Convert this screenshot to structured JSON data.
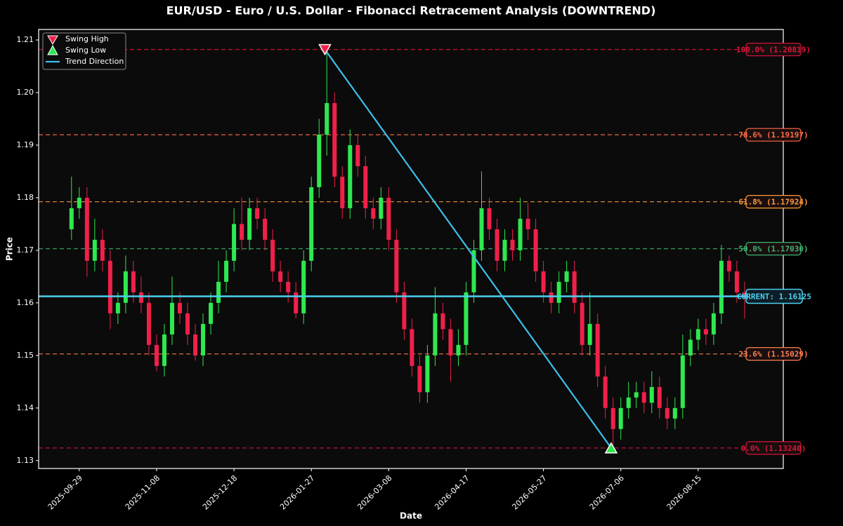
{
  "chart_data": {
    "type": "candlestick",
    "title": "EUR/USD - Euro / U.S. Dollar - Fibonacci Retracement Analysis (DOWNTREND)",
    "x_label": "Date",
    "y_label": "Price",
    "x": [
      "2025-09-25",
      "2025-09-29",
      "2025-10-03",
      "2025-10-07",
      "2025-10-11",
      "2025-10-15",
      "2025-10-19",
      "2025-10-23",
      "2025-10-27",
      "2025-10-31",
      "2025-11-04",
      "2025-11-08",
      "2025-11-12",
      "2025-11-16",
      "2025-11-20",
      "2025-11-24",
      "2025-11-28",
      "2025-12-02",
      "2025-12-06",
      "2025-12-10",
      "2025-12-14",
      "2025-12-18",
      "2025-12-22",
      "2025-12-26",
      "2025-12-30",
      "2026-01-03",
      "2026-01-07",
      "2026-01-11",
      "2026-01-15",
      "2026-01-19",
      "2026-01-23",
      "2026-01-27",
      "2026-01-31",
      "2026-02-04",
      "2026-02-08",
      "2026-02-12",
      "2026-02-16",
      "2026-02-20",
      "2026-02-24",
      "2026-02-28",
      "2026-03-04",
      "2026-03-08",
      "2026-03-12",
      "2026-03-16",
      "2026-03-20",
      "2026-03-24",
      "2026-03-28",
      "2026-04-01",
      "2026-04-05",
      "2026-04-09",
      "2026-04-13",
      "2026-04-17",
      "2026-04-21",
      "2026-04-25",
      "2026-04-29",
      "2026-05-03",
      "2026-05-07",
      "2026-05-11",
      "2026-05-15",
      "2026-05-19",
      "2026-05-23",
      "2026-05-27",
      "2026-05-31",
      "2026-06-04",
      "2026-06-08",
      "2026-06-12",
      "2026-06-16",
      "2026-06-20",
      "2026-06-24",
      "2026-06-28",
      "2026-07-02",
      "2026-07-06",
      "2026-07-10",
      "2026-07-14",
      "2026-07-18",
      "2026-07-22",
      "2026-07-26",
      "2026-07-30",
      "2026-08-03",
      "2026-08-07",
      "2026-08-11",
      "2026-08-15",
      "2026-08-19",
      "2026-08-23",
      "2026-08-27",
      "2026-08-31",
      "2026-09-04",
      "2026-09-08"
    ],
    "open": [
      1.174,
      1.178,
      1.18,
      1.168,
      1.172,
      1.168,
      1.158,
      1.16,
      1.166,
      1.162,
      1.16,
      1.152,
      1.148,
      1.154,
      1.16,
      1.158,
      1.154,
      1.15,
      1.156,
      1.16,
      1.164,
      1.168,
      1.175,
      1.172,
      1.178,
      1.176,
      1.172,
      1.166,
      1.164,
      1.162,
      1.158,
      1.168,
      1.182,
      1.192,
      1.198,
      1.184,
      1.178,
      1.19,
      1.186,
      1.178,
      1.176,
      1.18,
      1.172,
      1.162,
      1.155,
      1.148,
      1.143,
      1.15,
      1.158,
      1.155,
      1.15,
      1.152,
      1.162,
      1.17,
      1.178,
      1.174,
      1.168,
      1.172,
      1.17,
      1.176,
      1.174,
      1.166,
      1.162,
      1.16,
      1.164,
      1.166,
      1.16,
      1.152,
      1.156,
      1.146,
      1.14,
      1.136,
      1.14,
      1.142,
      1.143,
      1.141,
      1.144,
      1.14,
      1.138,
      1.14,
      1.15,
      1.153,
      1.155,
      1.154,
      1.158,
      1.168,
      1.166,
      1.162
    ],
    "high": [
      1.184,
      1.182,
      1.182,
      1.176,
      1.174,
      1.17,
      1.162,
      1.169,
      1.168,
      1.165,
      1.162,
      1.154,
      1.156,
      1.165,
      1.162,
      1.16,
      1.156,
      1.158,
      1.162,
      1.168,
      1.17,
      1.178,
      1.18,
      1.18,
      1.18,
      1.178,
      1.174,
      1.168,
      1.166,
      1.164,
      1.17,
      1.184,
      1.195,
      1.2082,
      1.2,
      1.186,
      1.193,
      1.192,
      1.188,
      1.18,
      1.182,
      1.182,
      1.174,
      1.164,
      1.157,
      1.15,
      1.152,
      1.163,
      1.16,
      1.157,
      1.155,
      1.164,
      1.172,
      1.185,
      1.18,
      1.176,
      1.174,
      1.174,
      1.18,
      1.179,
      1.176,
      1.168,
      1.164,
      1.166,
      1.168,
      1.168,
      1.162,
      1.162,
      1.158,
      1.148,
      1.142,
      1.142,
      1.145,
      1.145,
      1.145,
      1.147,
      1.146,
      1.142,
      1.142,
      1.154,
      1.155,
      1.157,
      1.157,
      1.16,
      1.171,
      1.169,
      1.168,
      1.164
    ],
    "low": [
      1.172,
      1.176,
      1.165,
      1.166,
      1.166,
      1.155,
      1.156,
      1.158,
      1.16,
      1.158,
      1.15,
      1.147,
      1.146,
      1.152,
      1.156,
      1.152,
      1.149,
      1.148,
      1.154,
      1.158,
      1.162,
      1.166,
      1.17,
      1.17,
      1.174,
      1.17,
      1.164,
      1.162,
      1.16,
      1.157,
      1.156,
      1.166,
      1.18,
      1.188,
      1.182,
      1.176,
      1.176,
      1.184,
      1.176,
      1.174,
      1.174,
      1.17,
      1.16,
      1.153,
      1.146,
      1.141,
      1.141,
      1.148,
      1.153,
      1.145,
      1.148,
      1.15,
      1.16,
      1.168,
      1.172,
      1.166,
      1.166,
      1.168,
      1.168,
      1.172,
      1.164,
      1.16,
      1.158,
      1.158,
      1.162,
      1.158,
      1.15,
      1.15,
      1.144,
      1.138,
      1.1324,
      1.134,
      1.138,
      1.14,
      1.139,
      1.139,
      1.138,
      1.136,
      1.136,
      1.138,
      1.148,
      1.151,
      1.152,
      1.152,
      1.156,
      1.164,
      1.16,
      1.157
    ],
    "close": [
      1.178,
      1.18,
      1.168,
      1.172,
      1.168,
      1.158,
      1.16,
      1.166,
      1.162,
      1.16,
      1.152,
      1.148,
      1.154,
      1.16,
      1.158,
      1.154,
      1.15,
      1.156,
      1.16,
      1.164,
      1.168,
      1.175,
      1.172,
      1.178,
      1.176,
      1.172,
      1.166,
      1.164,
      1.162,
      1.158,
      1.168,
      1.182,
      1.192,
      1.198,
      1.184,
      1.178,
      1.19,
      1.186,
      1.178,
      1.176,
      1.18,
      1.172,
      1.162,
      1.155,
      1.148,
      1.143,
      1.15,
      1.158,
      1.155,
      1.15,
      1.152,
      1.162,
      1.17,
      1.178,
      1.174,
      1.168,
      1.172,
      1.17,
      1.176,
      1.174,
      1.166,
      1.162,
      1.16,
      1.164,
      1.166,
      1.16,
      1.152,
      1.156,
      1.146,
      1.14,
      1.136,
      1.14,
      1.142,
      1.143,
      1.141,
      1.144,
      1.14,
      1.138,
      1.14,
      1.15,
      1.153,
      1.155,
      1.154,
      1.158,
      1.168,
      1.166,
      1.162,
      1.161
    ],
    "up_color": "#2ee84f",
    "down_color": "#f0204a",
    "xlim": [
      "2025-09-08",
      "2026-09-28"
    ],
    "xticks": [
      "2025-09-29",
      "2025-11-08",
      "2025-12-18",
      "2026-01-27",
      "2026-03-08",
      "2026-04-17",
      "2026-05-27",
      "2026-07-06",
      "2026-08-15"
    ],
    "ylim": [
      1.1285,
      1.212
    ],
    "yticks": [
      1.13,
      1.14,
      1.15,
      1.16,
      1.17,
      1.18,
      1.19,
      {
        "value": 1.2,
        "label": "1.20"
      },
      1.21
    ],
    "fib_levels": [
      {
        "label": "100.0% (1.20819)",
        "value": 1.20819,
        "color": "#dc143c"
      },
      {
        "label": "78.6% (1.19197)",
        "value": 1.19197,
        "color": "#ff6a45"
      },
      {
        "label": "61.8% (1.17924)",
        "value": 1.17924,
        "color": "#ff9a3c"
      },
      {
        "label": "50.0% (1.17030)",
        "value": 1.1703,
        "color": "#3cb371"
      },
      {
        "label": "23.6% (1.15029)",
        "value": 1.15029,
        "color": "#ff7f50"
      },
      {
        "label": "0.0% (1.13240)",
        "value": 1.1324,
        "color": "#dc143c"
      }
    ],
    "current": {
      "label": "CURRENT: 1.16125",
      "value": 1.16125,
      "color": "#4dd0f0"
    },
    "swing_high": {
      "name": "Swing High",
      "date": "2026-02-03",
      "value": 1.20819,
      "color": "#f0204a"
    },
    "swing_low": {
      "name": "Swing Low",
      "date": "2026-07-01",
      "value": 1.1324,
      "color": "#2ee84f"
    },
    "trend": {
      "name": "Trend Direction",
      "color": "#3cc0ea"
    },
    "legend": "upper left"
  }
}
